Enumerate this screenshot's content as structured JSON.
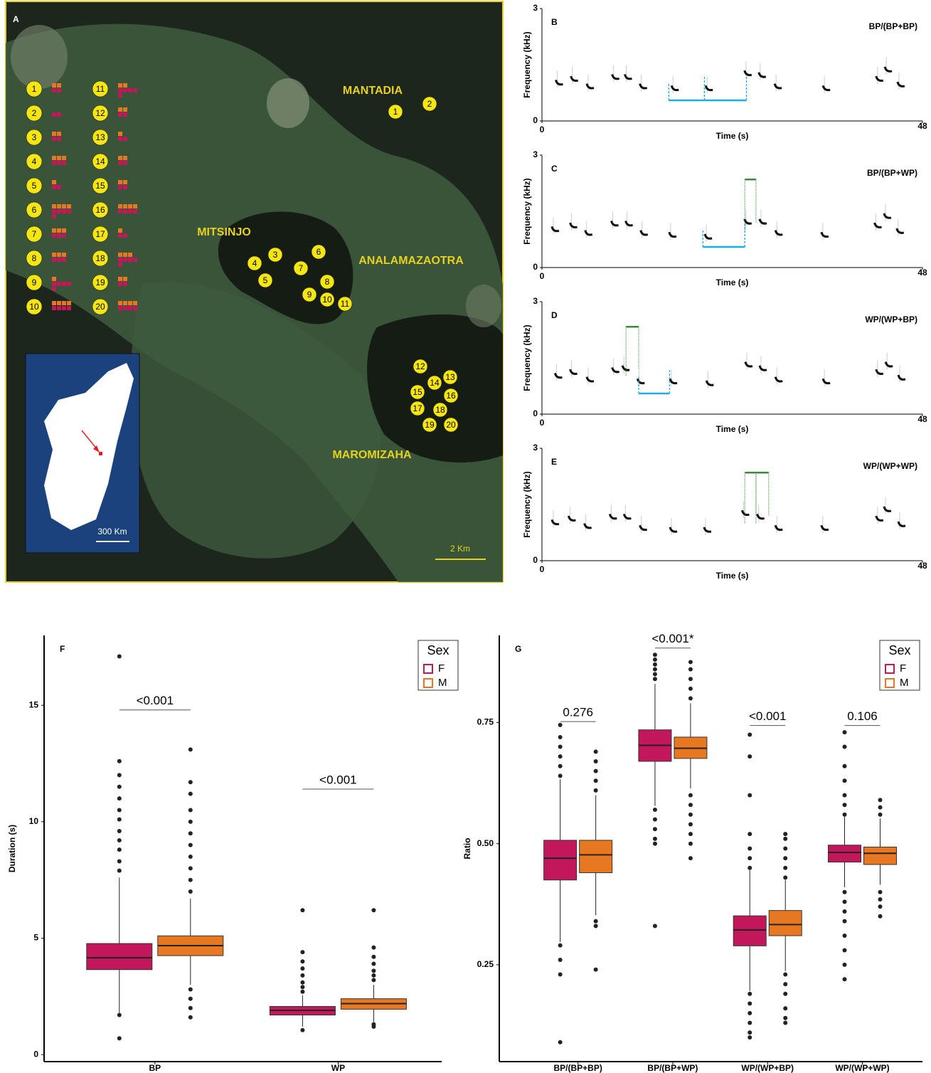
{
  "map": {
    "panel_label": "A",
    "areas": [
      "MANTADIA",
      "MITSINJO",
      "ANALAMAZAOTRA",
      "MAROMIZAHA"
    ],
    "sites": [
      "1",
      "2",
      "3",
      "4",
      "5",
      "6",
      "7",
      "8",
      "9",
      "10",
      "11",
      "12",
      "13",
      "14",
      "15",
      "16",
      "17",
      "18",
      "19",
      "20"
    ],
    "legend": {
      "females": [
        2,
        2,
        2,
        3,
        2,
        5,
        3,
        3,
        5,
        4,
        5,
        2,
        2,
        2,
        2,
        4,
        2,
        5,
        2,
        4
      ],
      "males": [
        2,
        0,
        2,
        3,
        1,
        4,
        3,
        3,
        1,
        4,
        2,
        2,
        1,
        2,
        2,
        4,
        1,
        3,
        2,
        4
      ],
      "female_color": "#c2185b",
      "male_color": "#e87722"
    },
    "scale_map": "2 Km",
    "scale_inset": "300 Km"
  },
  "chart_data": [
    {
      "type": "spectrogram",
      "panel_label": "B",
      "title": "BP/(BP+BP)",
      "x_label": "Time (s)",
      "y_label": "Frequency (kHz)",
      "xlim": [
        0,
        48
      ],
      "ylim": [
        0,
        3
      ],
      "xticks": [
        0,
        48
      ],
      "yticks": [
        0,
        3
      ],
      "x": [
        2.2,
        4.1,
        6.1,
        9.3,
        10.9,
        12.8,
        16.8,
        21.1,
        26.0,
        27.8,
        29.8,
        35.9,
        42.6,
        43.7,
        45.3
      ],
      "values": [
        1.0,
        1.1,
        0.9,
        1.15,
        1.15,
        0.9,
        0.85,
        0.85,
        1.25,
        1.2,
        0.9,
        0.85,
        1.1,
        1.35,
        0.95
      ],
      "intervals": [
        {
          "kind": "BP",
          "color": "#1aaee5",
          "start": 16.0,
          "end": 20.5,
          "level": 0.55
        },
        {
          "kind": "BP",
          "color": "#1aaee5",
          "start": 20.5,
          "end": 25.8,
          "level": 0.55
        }
      ]
    },
    {
      "type": "spectrogram",
      "panel_label": "C",
      "title": "BP/(BP+WP)",
      "x_label": "Time (s)",
      "y_label": "Frequency (kHz)",
      "xlim": [
        0,
        48
      ],
      "ylim": [
        0,
        3
      ],
      "xticks": [
        0,
        48
      ],
      "yticks": [
        0,
        3
      ],
      "x": [
        1.7,
        4.0,
        5.9,
        9.2,
        11.0,
        12.9,
        16.5,
        21.0,
        26.0,
        27.9,
        29.9,
        35.7,
        42.4,
        43.6,
        45.2
      ],
      "values": [
        1.0,
        1.1,
        0.9,
        1.15,
        1.15,
        0.9,
        0.85,
        0.8,
        1.2,
        1.2,
        0.9,
        0.85,
        1.1,
        1.35,
        0.95
      ],
      "intervals": [
        {
          "kind": "BP",
          "color": "#1aaee5",
          "start": 20.3,
          "end": 25.6,
          "level": 0.55
        },
        {
          "kind": "WP",
          "color": "#3a8a3a",
          "start": 25.6,
          "end": 27.0,
          "level": 2.35
        }
      ]
    },
    {
      "type": "spectrogram",
      "panel_label": "D",
      "title": "WP/(WP+BP)",
      "x_label": "Time (s)",
      "y_label": "Frequency (kHz)",
      "xlim": [
        0,
        48
      ],
      "ylim": [
        0,
        3
      ],
      "xticks": [
        0,
        48
      ],
      "yticks": [
        0,
        3
      ],
      "x": [
        2.1,
        4.0,
        6.1,
        9.3,
        10.6,
        12.5,
        16.6,
        21.2,
        26.1,
        27.9,
        29.9,
        35.9,
        42.6,
        43.8,
        45.4
      ],
      "values": [
        1.0,
        1.1,
        0.9,
        1.15,
        1.2,
        0.85,
        0.85,
        0.8,
        1.3,
        1.2,
        0.9,
        0.85,
        1.1,
        1.3,
        0.95
      ],
      "intervals": [
        {
          "kind": "WP",
          "color": "#3a8a3a",
          "start": 10.6,
          "end": 12.2,
          "level": 2.33
        },
        {
          "kind": "BP",
          "color": "#1aaee5",
          "start": 12.2,
          "end": 16.1,
          "level": 0.55
        }
      ]
    },
    {
      "type": "spectrogram",
      "panel_label": "E",
      "title": "WP/(WP+WP)",
      "x_label": "Time (s)",
      "y_label": "Frequency (kHz)",
      "xlim": [
        0,
        48
      ],
      "ylim": [
        0,
        3
      ],
      "xticks": [
        0,
        48
      ],
      "yticks": [
        0,
        3
      ],
      "x": [
        1.7,
        3.8,
        5.8,
        9.0,
        10.8,
        12.8,
        16.6,
        20.9,
        25.7,
        27.6,
        29.9,
        35.7,
        42.6,
        43.6,
        45.4
      ],
      "values": [
        1.0,
        1.1,
        0.9,
        1.15,
        1.15,
        0.85,
        0.8,
        0.8,
        1.25,
        1.15,
        0.85,
        0.85,
        1.1,
        1.35,
        0.95
      ],
      "intervals": [
        {
          "kind": "WP",
          "color": "#3a8a3a",
          "start": 25.6,
          "end": 27.0,
          "level": 2.35
        },
        {
          "kind": "WP",
          "color": "#3a8a3a",
          "start": 27.0,
          "end": 28.6,
          "level": 2.35
        }
      ]
    },
    {
      "type": "box",
      "panel_label": "F",
      "y_label": "Duration (s)",
      "categories": [
        "BP",
        "WP"
      ],
      "legend_title": "Sex",
      "ylim": [
        -0.3,
        18
      ],
      "yticks": [
        0,
        5,
        10,
        15
      ],
      "series": [
        {
          "name": "F",
          "color": "#c2185b",
          "boxes": [
            [
              1.8,
              3.65,
              4.16,
              4.77,
              7.6
            ],
            [
              1.2,
              1.7,
              1.9,
              2.07,
              2.55
            ]
          ],
          "outliers": [
            [
              7.9,
              8.3,
              8.8,
              9.2,
              9.6,
              10.1,
              10.5,
              11.0,
              11.5,
              12.0,
              12.6,
              17.1,
              1.7,
              0.7
            ],
            [
              2.7,
              2.9,
              3.1,
              3.4,
              3.7,
              4.0,
              4.4,
              6.2,
              1.05
            ]
          ]
        },
        {
          "name": "M",
          "color": "#e87722",
          "boxes": [
            [
              3.0,
              4.25,
              4.68,
              5.1,
              6.7
            ],
            [
              1.4,
              1.95,
              2.19,
              2.4,
              3.0
            ]
          ],
          "outliers": [
            [
              7.0,
              7.5,
              8.0,
              8.5,
              9.0,
              9.5,
              10.0,
              10.5,
              11.2,
              11.7,
              13.1,
              2.8,
              2.4,
              2.0,
              1.6
            ],
            [
              3.2,
              3.4,
              3.6,
              3.9,
              4.2,
              4.6,
              6.2,
              1.3,
              1.2
            ]
          ]
        }
      ],
      "tests": [
        {
          "label": "<0.001",
          "level": 14.8
        },
        {
          "label": "<0.001",
          "level": 11.4
        }
      ]
    },
    {
      "type": "box",
      "panel_label": "G",
      "y_label": "Ratio",
      "categories": [
        "BP/(BP+BP)",
        "BP/(BP+WP)",
        "WP/(WP+BP)",
        "WP/(WP+WP)"
      ],
      "legend_title": "Sex",
      "ylim": [
        0.05,
        0.93
      ],
      "yticks": [
        {
          "value": 0.25,
          "label": "0.25"
        },
        {
          "value": 0.5,
          "label": "0.50"
        },
        {
          "value": 0.75,
          "label": "0.75"
        }
      ],
      "series": [
        {
          "name": "F",
          "color": "#c2185b",
          "boxes": [
            [
              0.297,
              0.425,
              0.47,
              0.507,
              0.633
            ],
            [
              0.578,
              0.67,
              0.703,
              0.735,
              0.83
            ],
            [
              0.196,
              0.289,
              0.322,
              0.351,
              0.445
            ],
            [
              0.41,
              0.462,
              0.482,
              0.497,
              0.555
            ]
          ],
          "outliers": [
            [
              0.64,
              0.66,
              0.68,
              0.7,
              0.72,
              0.745,
              0.29,
              0.26,
              0.23,
              0.09
            ],
            [
              0.84,
              0.85,
              0.86,
              0.87,
              0.88,
              0.89,
              0.57,
              0.55,
              0.53,
              0.51,
              0.5,
              0.33
            ],
            [
              0.45,
              0.47,
              0.49,
              0.52,
              0.6,
              0.68,
              0.725,
              0.19,
              0.17,
              0.15,
              0.13,
              0.11,
              0.1
            ],
            [
              0.56,
              0.58,
              0.6,
              0.63,
              0.66,
              0.7,
              0.73,
              0.4,
              0.38,
              0.36,
              0.34,
              0.31,
              0.28,
              0.25,
              0.22
            ]
          ]
        },
        {
          "name": "M",
          "color": "#e87722",
          "boxes": [
            [
              0.352,
              0.44,
              0.477,
              0.507,
              0.6
            ],
            [
              0.614,
              0.676,
              0.697,
              0.72,
              0.79
            ],
            [
              0.237,
              0.31,
              0.333,
              0.362,
              0.425
            ],
            [
              0.415,
              0.457,
              0.48,
              0.493,
              0.552
            ]
          ],
          "outliers": [
            [
              0.61,
              0.63,
              0.65,
              0.67,
              0.69,
              0.34,
              0.33,
              0.24
            ],
            [
              0.8,
              0.82,
              0.84,
              0.86,
              0.875,
              0.6,
              0.58,
              0.56,
              0.54,
              0.52,
              0.5,
              0.47
            ],
            [
              0.43,
              0.45,
              0.47,
              0.49,
              0.51,
              0.52,
              0.23,
              0.21,
              0.19,
              0.16,
              0.14,
              0.13
            ],
            [
              0.56,
              0.575,
              0.59,
              0.4,
              0.385,
              0.37,
              0.35
            ]
          ]
        }
      ],
      "tests": [
        {
          "label": "0.276",
          "level": 0.752
        },
        {
          "label": "<0.001*",
          "level": 0.904
        },
        {
          "label": "<0.001",
          "level": 0.744
        },
        {
          "label": "0.106",
          "level": 0.744
        }
      ]
    }
  ]
}
